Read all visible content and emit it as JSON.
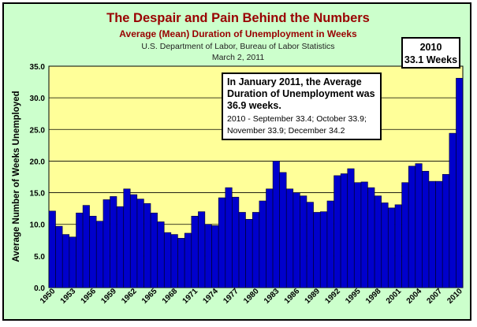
{
  "header": {
    "title": "The Despair and Pain Behind the Numbers",
    "subtitle": "Average (Mean) Duration of Unemployment in Weeks",
    "source": "U.S. Department of Labor, Bureau of Labor Statistics",
    "date": "March 2, 2011"
  },
  "annotations": {
    "main_headline": "In January 2011, the Average Duration of Unemployment was 36.9 weeks.",
    "main_detail": "2010 - September 33.4; October 33.9; November 33.9; December 34.2",
    "callout_year": "2010",
    "callout_value": "33.1 Weeks"
  },
  "colors": {
    "bar": "#0000cc",
    "plot_bg": "#ffff99",
    "frame_bg": "#ccffcc",
    "title": "#990000"
  },
  "chart_data": {
    "type": "bar",
    "title": "The Despair and Pain Behind the Numbers",
    "subtitle": "Average (Mean) Duration of Unemployment in Weeks",
    "ylabel": "Average Number of Weeks Unemployed",
    "xlabel": "",
    "ylim": [
      0,
      35
    ],
    "yticks": [
      "0.0",
      "5.0",
      "10.0",
      "15.0",
      "20.0",
      "25.0",
      "30.0",
      "35.0"
    ],
    "grid": true,
    "x_tick_labels": [
      "1950",
      "1953",
      "1956",
      "1959",
      "1962",
      "1965",
      "1968",
      "1971",
      "1974",
      "1977",
      "1980",
      "1983",
      "1986",
      "1989",
      "1992",
      "1995",
      "1998",
      "2001",
      "2004",
      "2007",
      "2010"
    ],
    "categories": [
      "1950",
      "1951",
      "1952",
      "1953",
      "1954",
      "1955",
      "1956",
      "1957",
      "1958",
      "1959",
      "1960",
      "1961",
      "1962",
      "1963",
      "1964",
      "1965",
      "1966",
      "1967",
      "1968",
      "1969",
      "1970",
      "1971",
      "1972",
      "1973",
      "1974",
      "1975",
      "1976",
      "1977",
      "1978",
      "1979",
      "1980",
      "1981",
      "1982",
      "1983",
      "1984",
      "1985",
      "1986",
      "1987",
      "1988",
      "1989",
      "1990",
      "1991",
      "1992",
      "1993",
      "1994",
      "1995",
      "1996",
      "1997",
      "1998",
      "1999",
      "2000",
      "2001",
      "2002",
      "2003",
      "2004",
      "2005",
      "2006",
      "2007",
      "2008",
      "2009",
      "2010"
    ],
    "values": [
      12.1,
      9.7,
      8.4,
      8.0,
      11.8,
      13.0,
      11.3,
      10.5,
      13.9,
      14.4,
      12.8,
      15.6,
      14.7,
      14.0,
      13.3,
      11.8,
      10.4,
      8.7,
      8.4,
      7.8,
      8.6,
      11.3,
      12.0,
      10.0,
      9.8,
      14.2,
      15.8,
      14.3,
      11.9,
      10.8,
      11.9,
      13.7,
      15.6,
      20.0,
      18.2,
      15.6,
      15.0,
      14.5,
      13.5,
      11.9,
      12.0,
      13.7,
      17.7,
      18.0,
      18.8,
      16.6,
      16.7,
      15.8,
      14.5,
      13.4,
      12.6,
      13.1,
      16.6,
      19.2,
      19.6,
      18.4,
      16.8,
      16.8,
      17.9,
      24.4,
      33.1
    ]
  }
}
